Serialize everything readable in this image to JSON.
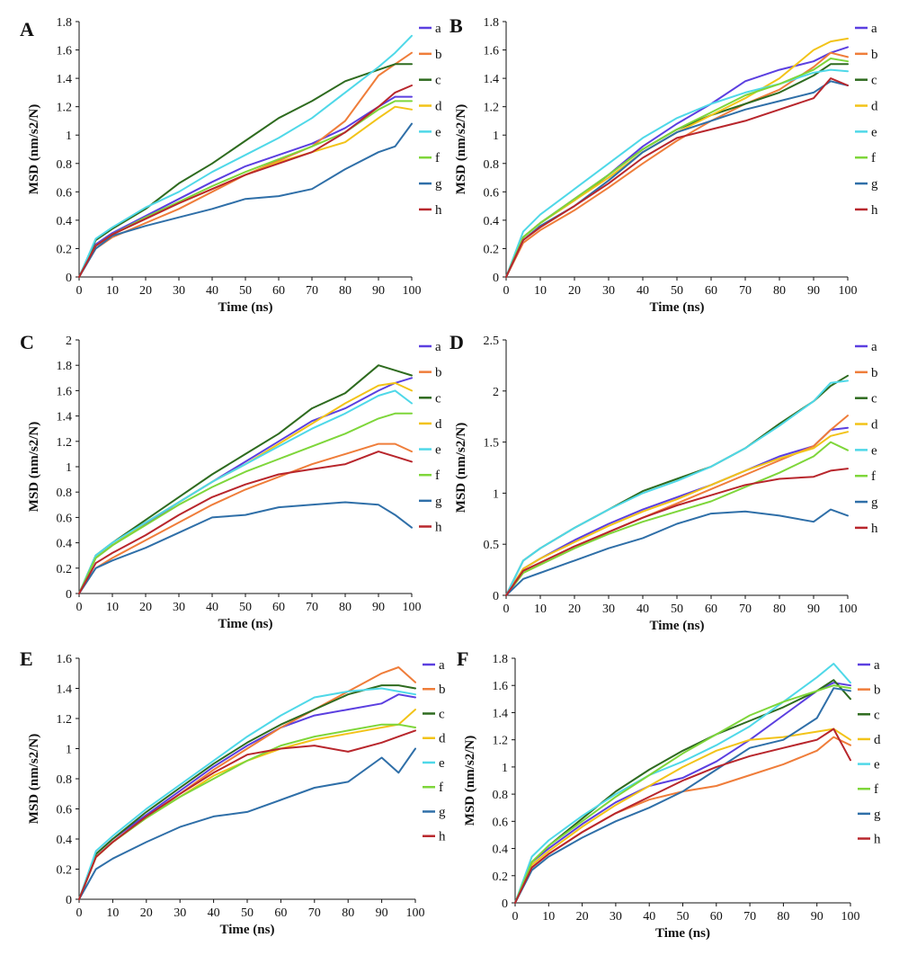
{
  "colors": {
    "a": "#5b3fe0",
    "b": "#ef7d3a",
    "c": "#2e6b1f",
    "d": "#f2c318",
    "e": "#4fd8e8",
    "f": "#7ed63a",
    "g": "#2f6fa8",
    "h": "#b8262c"
  },
  "chart_data": [
    {
      "panel": "A",
      "type": "line",
      "xlabel": "Time (ns)",
      "ylabel": "MSD (nm/s2/N)",
      "xlim": [
        0,
        100
      ],
      "ylim": [
        0,
        1.8
      ],
      "xticks": [
        "0",
        "10",
        "20",
        "30",
        "40",
        "50",
        "60",
        "70",
        "80",
        "90",
        "100"
      ],
      "yticks": [
        "0",
        "0.2",
        "0.4",
        "0.6",
        "0.8",
        "1",
        "1.2",
        "1.4",
        "1.6",
        "1.8"
      ],
      "legend_position": "right",
      "x": [
        0,
        5,
        10,
        20,
        30,
        40,
        50,
        60,
        70,
        80,
        90,
        95,
        100
      ],
      "series": [
        {
          "name": "a",
          "values": [
            0,
            0.23,
            0.31,
            0.43,
            0.55,
            0.67,
            0.78,
            0.86,
            0.94,
            1.05,
            1.2,
            1.27,
            1.27
          ]
        },
        {
          "name": "b",
          "values": [
            0,
            0.2,
            0.28,
            0.38,
            0.48,
            0.6,
            0.72,
            0.82,
            0.92,
            1.1,
            1.42,
            1.5,
            1.58
          ]
        },
        {
          "name": "c",
          "values": [
            0,
            0.26,
            0.34,
            0.48,
            0.66,
            0.8,
            0.96,
            1.12,
            1.24,
            1.38,
            1.46,
            1.5,
            1.5
          ]
        },
        {
          "name": "d",
          "values": [
            0,
            0.22,
            0.3,
            0.41,
            0.52,
            0.62,
            0.72,
            0.81,
            0.88,
            0.95,
            1.12,
            1.2,
            1.18
          ]
        },
        {
          "name": "e",
          "values": [
            0,
            0.27,
            0.35,
            0.49,
            0.6,
            0.74,
            0.86,
            0.98,
            1.12,
            1.3,
            1.48,
            1.58,
            1.7
          ]
        },
        {
          "name": "f",
          "values": [
            0,
            0.22,
            0.3,
            0.42,
            0.53,
            0.64,
            0.74,
            0.83,
            0.92,
            1.02,
            1.18,
            1.24,
            1.24
          ]
        },
        {
          "name": "g",
          "values": [
            0,
            0.2,
            0.29,
            0.36,
            0.42,
            0.48,
            0.55,
            0.57,
            0.62,
            0.76,
            0.88,
            0.92,
            1.08
          ]
        },
        {
          "name": "h",
          "values": [
            0,
            0.22,
            0.3,
            0.41,
            0.52,
            0.62,
            0.72,
            0.8,
            0.88,
            1.02,
            1.2,
            1.3,
            1.35
          ]
        }
      ]
    },
    {
      "panel": "B",
      "type": "line",
      "xlabel": "Time (ns)",
      "ylabel": "MSD (nm/s2/N)",
      "xlim": [
        0,
        100
      ],
      "ylim": [
        0,
        1.8
      ],
      "xticks": [
        "0",
        "10",
        "20",
        "30",
        "40",
        "50",
        "60",
        "70",
        "80",
        "90",
        "100"
      ],
      "yticks": [
        "0",
        "0.2",
        "0.4",
        "0.6",
        "0.8",
        "1",
        "1.2",
        "1.4",
        "1.6",
        "1.8"
      ],
      "legend_position": "right",
      "x": [
        0,
        5,
        10,
        20,
        30,
        40,
        50,
        60,
        70,
        80,
        90,
        95,
        100
      ],
      "series": [
        {
          "name": "a",
          "values": [
            0,
            0.28,
            0.38,
            0.55,
            0.72,
            0.92,
            1.08,
            1.22,
            1.38,
            1.46,
            1.52,
            1.58,
            1.62
          ]
        },
        {
          "name": "b",
          "values": [
            0,
            0.24,
            0.33,
            0.47,
            0.63,
            0.8,
            0.96,
            1.1,
            1.22,
            1.32,
            1.48,
            1.58,
            1.55
          ]
        },
        {
          "name": "c",
          "values": [
            0,
            0.28,
            0.38,
            0.54,
            0.72,
            0.9,
            1.04,
            1.14,
            1.22,
            1.3,
            1.42,
            1.5,
            1.5
          ]
        },
        {
          "name": "d",
          "values": [
            0,
            0.28,
            0.38,
            0.54,
            0.7,
            0.88,
            1.02,
            1.14,
            1.26,
            1.4,
            1.6,
            1.66,
            1.68
          ]
        },
        {
          "name": "e",
          "values": [
            0,
            0.32,
            0.44,
            0.62,
            0.8,
            0.98,
            1.12,
            1.22,
            1.3,
            1.36,
            1.44,
            1.46,
            1.45
          ]
        },
        {
          "name": "f",
          "values": [
            0,
            0.28,
            0.38,
            0.55,
            0.72,
            0.9,
            1.04,
            1.16,
            1.28,
            1.36,
            1.46,
            1.54,
            1.52
          ]
        },
        {
          "name": "g",
          "values": [
            0,
            0.26,
            0.36,
            0.5,
            0.68,
            0.88,
            1.02,
            1.1,
            1.18,
            1.24,
            1.3,
            1.38,
            1.35
          ]
        },
        {
          "name": "h",
          "values": [
            0,
            0.26,
            0.35,
            0.5,
            0.66,
            0.84,
            0.98,
            1.04,
            1.1,
            1.18,
            1.26,
            1.4,
            1.35
          ]
        }
      ]
    },
    {
      "panel": "C",
      "type": "line",
      "xlabel": "Time (ns)",
      "ylabel": "MSD (nm/s2/N)",
      "xlim": [
        0,
        100
      ],
      "ylim": [
        0,
        2
      ],
      "xticks": [
        "0",
        "10",
        "20",
        "30",
        "40",
        "50",
        "60",
        "70",
        "80",
        "90",
        "100"
      ],
      "yticks": [
        "0",
        "0.2",
        "0.4",
        "0.6",
        "0.8",
        "1",
        "1.2",
        "1.4",
        "1.6",
        "1.8",
        "2"
      ],
      "legend_position": "right",
      "x": [
        0,
        5,
        10,
        20,
        30,
        40,
        50,
        60,
        70,
        80,
        90,
        95,
        100
      ],
      "series": [
        {
          "name": "a",
          "values": [
            0,
            0.28,
            0.38,
            0.55,
            0.72,
            0.88,
            1.04,
            1.2,
            1.36,
            1.46,
            1.6,
            1.66,
            1.7
          ]
        },
        {
          "name": "b",
          "values": [
            0,
            0.2,
            0.28,
            0.42,
            0.56,
            0.7,
            0.82,
            0.92,
            1.02,
            1.1,
            1.18,
            1.18,
            1.12
          ]
        },
        {
          "name": "c",
          "values": [
            0,
            0.3,
            0.4,
            0.58,
            0.76,
            0.94,
            1.1,
            1.26,
            1.46,
            1.58,
            1.8,
            1.76,
            1.72
          ]
        },
        {
          "name": "d",
          "values": [
            0,
            0.28,
            0.38,
            0.56,
            0.72,
            0.88,
            1.02,
            1.18,
            1.34,
            1.5,
            1.64,
            1.66,
            1.6
          ]
        },
        {
          "name": "e",
          "values": [
            0,
            0.3,
            0.4,
            0.56,
            0.72,
            0.88,
            1.02,
            1.16,
            1.3,
            1.42,
            1.56,
            1.6,
            1.5
          ]
        },
        {
          "name": "f",
          "values": [
            0,
            0.28,
            0.38,
            0.54,
            0.7,
            0.84,
            0.96,
            1.06,
            1.16,
            1.26,
            1.38,
            1.42,
            1.42
          ]
        },
        {
          "name": "g",
          "values": [
            0,
            0.2,
            0.26,
            0.36,
            0.48,
            0.6,
            0.62,
            0.68,
            0.7,
            0.72,
            0.7,
            0.62,
            0.52
          ]
        },
        {
          "name": "h",
          "values": [
            0,
            0.24,
            0.32,
            0.46,
            0.62,
            0.76,
            0.86,
            0.94,
            0.98,
            1.02,
            1.12,
            1.08,
            1.04
          ]
        }
      ]
    },
    {
      "panel": "D",
      "type": "line",
      "xlabel": "Time (ns)",
      "ylabel": "MSD (nm/s2/N)",
      "xlim": [
        0,
        100
      ],
      "ylim": [
        0,
        2.5
      ],
      "xticks": [
        "0",
        "10",
        "20",
        "30",
        "40",
        "50",
        "60",
        "70",
        "80",
        "90",
        "100"
      ],
      "yticks": [
        "0",
        "0.5",
        "1",
        "1.5",
        "2",
        "2.5"
      ],
      "legend_position": "right",
      "x": [
        0,
        5,
        10,
        20,
        30,
        40,
        50,
        60,
        70,
        80,
        90,
        95,
        100
      ],
      "series": [
        {
          "name": "a",
          "values": [
            0,
            0.26,
            0.36,
            0.54,
            0.7,
            0.84,
            0.96,
            1.08,
            1.22,
            1.36,
            1.46,
            1.62,
            1.64
          ]
        },
        {
          "name": "b",
          "values": [
            0,
            0.22,
            0.3,
            0.46,
            0.62,
            0.76,
            0.9,
            1.04,
            1.18,
            1.32,
            1.46,
            1.62,
            1.76
          ]
        },
        {
          "name": "c",
          "values": [
            0,
            0.34,
            0.46,
            0.66,
            0.84,
            1.02,
            1.14,
            1.26,
            1.44,
            1.68,
            1.9,
            2.05,
            2.15
          ]
        },
        {
          "name": "d",
          "values": [
            0,
            0.26,
            0.36,
            0.52,
            0.68,
            0.82,
            0.94,
            1.08,
            1.22,
            1.34,
            1.44,
            1.56,
            1.6
          ]
        },
        {
          "name": "e",
          "values": [
            0,
            0.34,
            0.46,
            0.66,
            0.84,
            1.0,
            1.12,
            1.26,
            1.44,
            1.66,
            1.9,
            2.08,
            2.1
          ]
        },
        {
          "name": "f",
          "values": [
            0,
            0.22,
            0.3,
            0.46,
            0.6,
            0.72,
            0.82,
            0.92,
            1.06,
            1.2,
            1.36,
            1.5,
            1.42
          ]
        },
        {
          "name": "g",
          "values": [
            0,
            0.16,
            0.22,
            0.34,
            0.46,
            0.56,
            0.7,
            0.8,
            0.82,
            0.78,
            0.72,
            0.84,
            0.78
          ]
        },
        {
          "name": "h",
          "values": [
            0,
            0.24,
            0.32,
            0.48,
            0.62,
            0.76,
            0.88,
            0.98,
            1.08,
            1.14,
            1.16,
            1.22,
            1.24
          ]
        }
      ]
    },
    {
      "panel": "E",
      "type": "line",
      "xlabel": "Time (ns)",
      "ylabel": "MSD (nm/s2/N)",
      "xlim": [
        0,
        100
      ],
      "ylim": [
        0,
        1.6
      ],
      "xticks": [
        "0",
        "10",
        "20",
        "30",
        "40",
        "50",
        "60",
        "70",
        "80",
        "90",
        "100"
      ],
      "yticks": [
        "0",
        "0.2",
        "0.4",
        "0.6",
        "0.8",
        "1",
        "1.2",
        "1.4",
        "1.6"
      ],
      "legend_position": "right",
      "x": [
        0,
        5,
        10,
        20,
        30,
        40,
        50,
        60,
        70,
        80,
        90,
        95,
        100
      ],
      "series": [
        {
          "name": "a",
          "values": [
            0,
            0.3,
            0.4,
            0.56,
            0.72,
            0.88,
            1.02,
            1.14,
            1.22,
            1.26,
            1.3,
            1.36,
            1.34
          ]
        },
        {
          "name": "b",
          "values": [
            0,
            0.28,
            0.38,
            0.54,
            0.7,
            0.86,
            1.0,
            1.14,
            1.26,
            1.38,
            1.5,
            1.54,
            1.44
          ]
        },
        {
          "name": "c",
          "values": [
            0,
            0.3,
            0.4,
            0.58,
            0.74,
            0.9,
            1.04,
            1.16,
            1.26,
            1.36,
            1.42,
            1.42,
            1.4
          ]
        },
        {
          "name": "d",
          "values": [
            0,
            0.28,
            0.38,
            0.54,
            0.68,
            0.82,
            0.92,
            1.0,
            1.06,
            1.1,
            1.14,
            1.16,
            1.26
          ]
        },
        {
          "name": "e",
          "values": [
            0,
            0.32,
            0.42,
            0.6,
            0.76,
            0.92,
            1.08,
            1.22,
            1.34,
            1.38,
            1.4,
            1.38,
            1.36
          ]
        },
        {
          "name": "f",
          "values": [
            0,
            0.28,
            0.38,
            0.54,
            0.68,
            0.8,
            0.92,
            1.02,
            1.08,
            1.12,
            1.16,
            1.16,
            1.14
          ]
        },
        {
          "name": "g",
          "values": [
            0,
            0.2,
            0.27,
            0.38,
            0.48,
            0.55,
            0.58,
            0.66,
            0.74,
            0.78,
            0.94,
            0.84,
            1.0
          ]
        },
        {
          "name": "h",
          "values": [
            0,
            0.28,
            0.38,
            0.55,
            0.7,
            0.84,
            0.96,
            1.0,
            1.02,
            0.98,
            1.04,
            1.08,
            1.12
          ]
        }
      ]
    },
    {
      "panel": "F",
      "type": "line",
      "xlabel": "Time (ns)",
      "ylabel": "MSD (nm/s2/N)",
      "xlim": [
        0,
        100
      ],
      "ylim": [
        0,
        1.8
      ],
      "xticks": [
        "0",
        "10",
        "20",
        "30",
        "40",
        "50",
        "60",
        "70",
        "80",
        "90",
        "100"
      ],
      "yticks": [
        "0",
        "0.2",
        "0.4",
        "0.6",
        "0.8",
        "1",
        "1.2",
        "1.4",
        "1.6",
        "1.8"
      ],
      "legend_position": "right",
      "x": [
        0,
        5,
        10,
        20,
        30,
        40,
        50,
        60,
        70,
        80,
        90,
        95,
        100
      ],
      "series": [
        {
          "name": "a",
          "values": [
            0,
            0.3,
            0.4,
            0.58,
            0.74,
            0.86,
            0.92,
            1.04,
            1.2,
            1.38,
            1.56,
            1.62,
            1.6
          ]
        },
        {
          "name": "b",
          "values": [
            0,
            0.26,
            0.36,
            0.52,
            0.66,
            0.76,
            0.82,
            0.86,
            0.94,
            1.02,
            1.12,
            1.22,
            1.16
          ]
        },
        {
          "name": "c",
          "values": [
            0,
            0.3,
            0.42,
            0.62,
            0.82,
            0.98,
            1.12,
            1.24,
            1.34,
            1.44,
            1.56,
            1.64,
            1.5
          ]
        },
        {
          "name": "d",
          "values": [
            0,
            0.28,
            0.38,
            0.56,
            0.72,
            0.86,
            1.0,
            1.12,
            1.2,
            1.22,
            1.26,
            1.28,
            1.2
          ]
        },
        {
          "name": "e",
          "values": [
            0,
            0.34,
            0.46,
            0.64,
            0.8,
            0.94,
            1.04,
            1.16,
            1.3,
            1.48,
            1.66,
            1.76,
            1.62
          ]
        },
        {
          "name": "f",
          "values": [
            0,
            0.3,
            0.42,
            0.6,
            0.78,
            0.94,
            1.1,
            1.24,
            1.38,
            1.48,
            1.56,
            1.6,
            1.58
          ]
        },
        {
          "name": "g",
          "values": [
            0,
            0.24,
            0.34,
            0.48,
            0.6,
            0.7,
            0.82,
            0.98,
            1.14,
            1.2,
            1.36,
            1.58,
            1.56
          ]
        },
        {
          "name": "h",
          "values": [
            0,
            0.26,
            0.36,
            0.52,
            0.66,
            0.78,
            0.9,
            1.0,
            1.08,
            1.14,
            1.2,
            1.28,
            1.05
          ]
        }
      ]
    }
  ]
}
